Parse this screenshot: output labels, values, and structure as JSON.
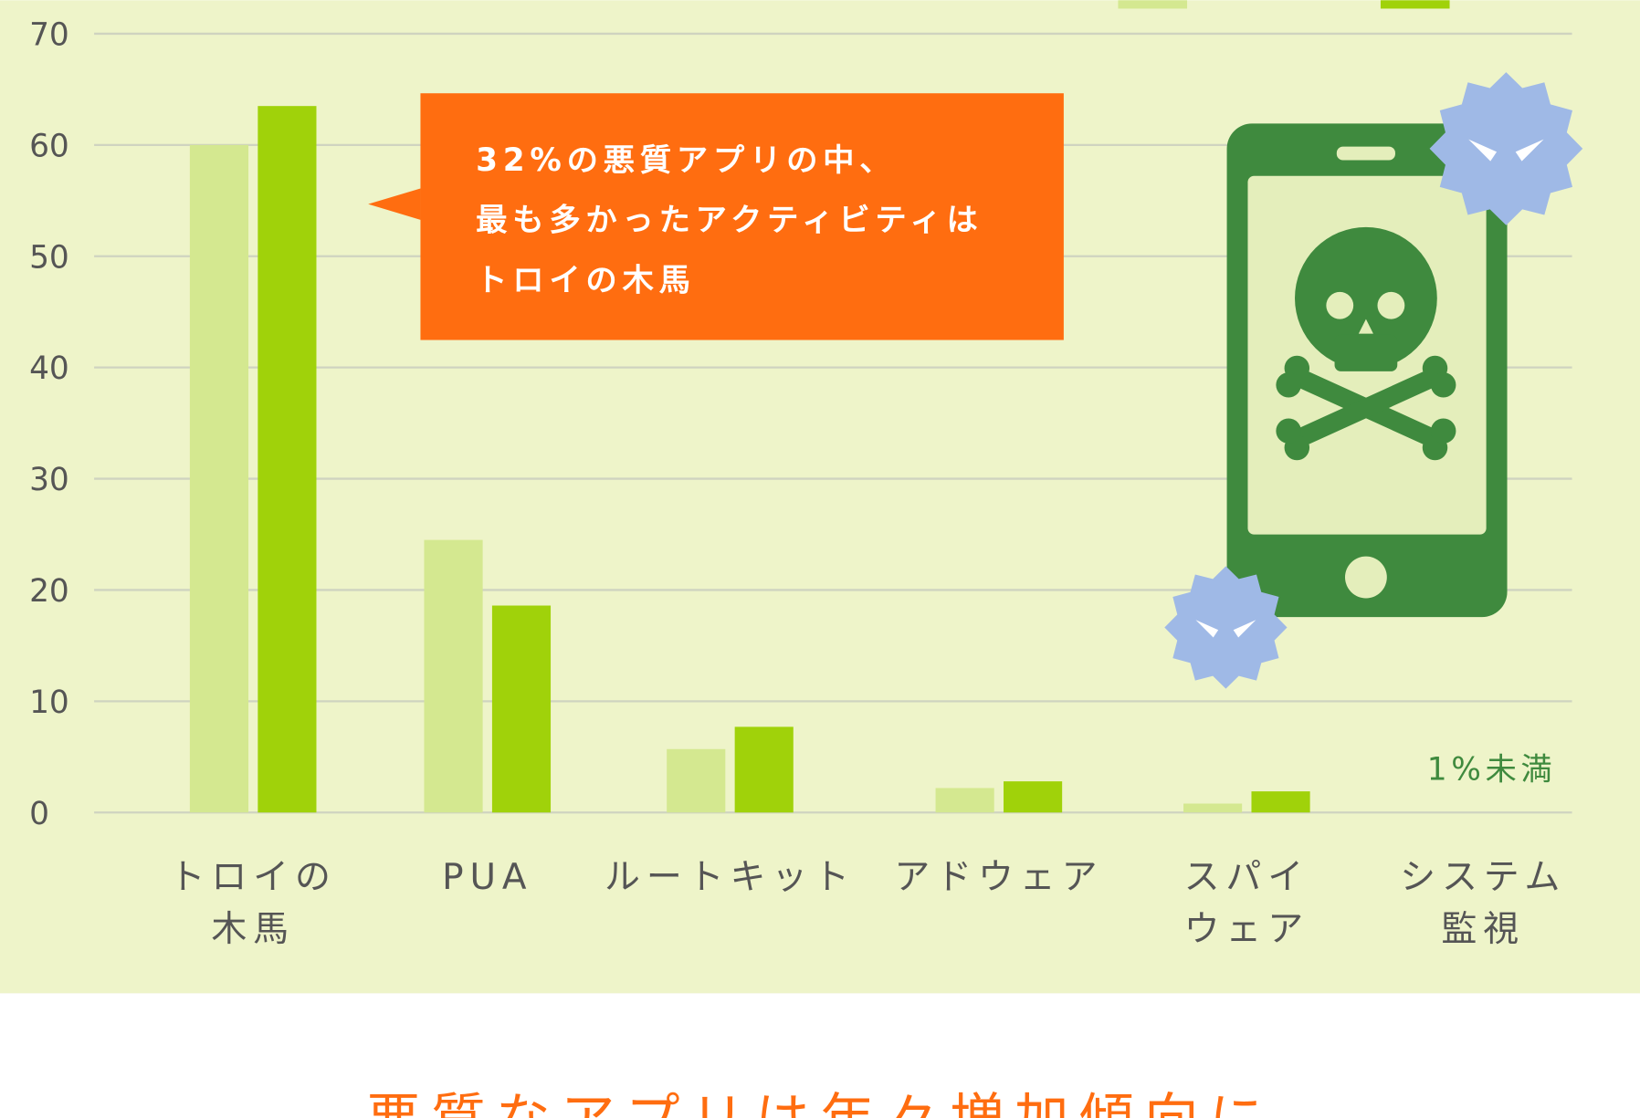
{
  "chart_data": {
    "type": "bar",
    "categories": [
      [
        "トロイの",
        "木馬"
      ],
      [
        "PUA"
      ],
      [
        "ルートキット"
      ],
      [
        "アドウェア"
      ],
      [
        "スパイ",
        "ウェア"
      ],
      [
        "システム",
        "監視"
      ]
    ],
    "series": [
      {
        "color": "#d4e890",
        "values": [
          60,
          24.5,
          5.7,
          2.2,
          0.8,
          null
        ]
      },
      {
        "color": "#a0d20a",
        "values": [
          63.5,
          18.6,
          7.7,
          2.8,
          1.9,
          null
        ]
      }
    ],
    "ylim": [
      0,
      70
    ],
    "yticks": [
      0,
      10,
      20,
      30,
      40,
      50,
      60,
      70
    ],
    "grid": true,
    "annotations": [
      "1%未満"
    ],
    "callout": [
      "32%の悪質アプリの中、",
      "最も多かったアクティビティは",
      "トロイの木馬"
    ],
    "footer_title": "悪質なアプリは年々増加傾向に"
  }
}
